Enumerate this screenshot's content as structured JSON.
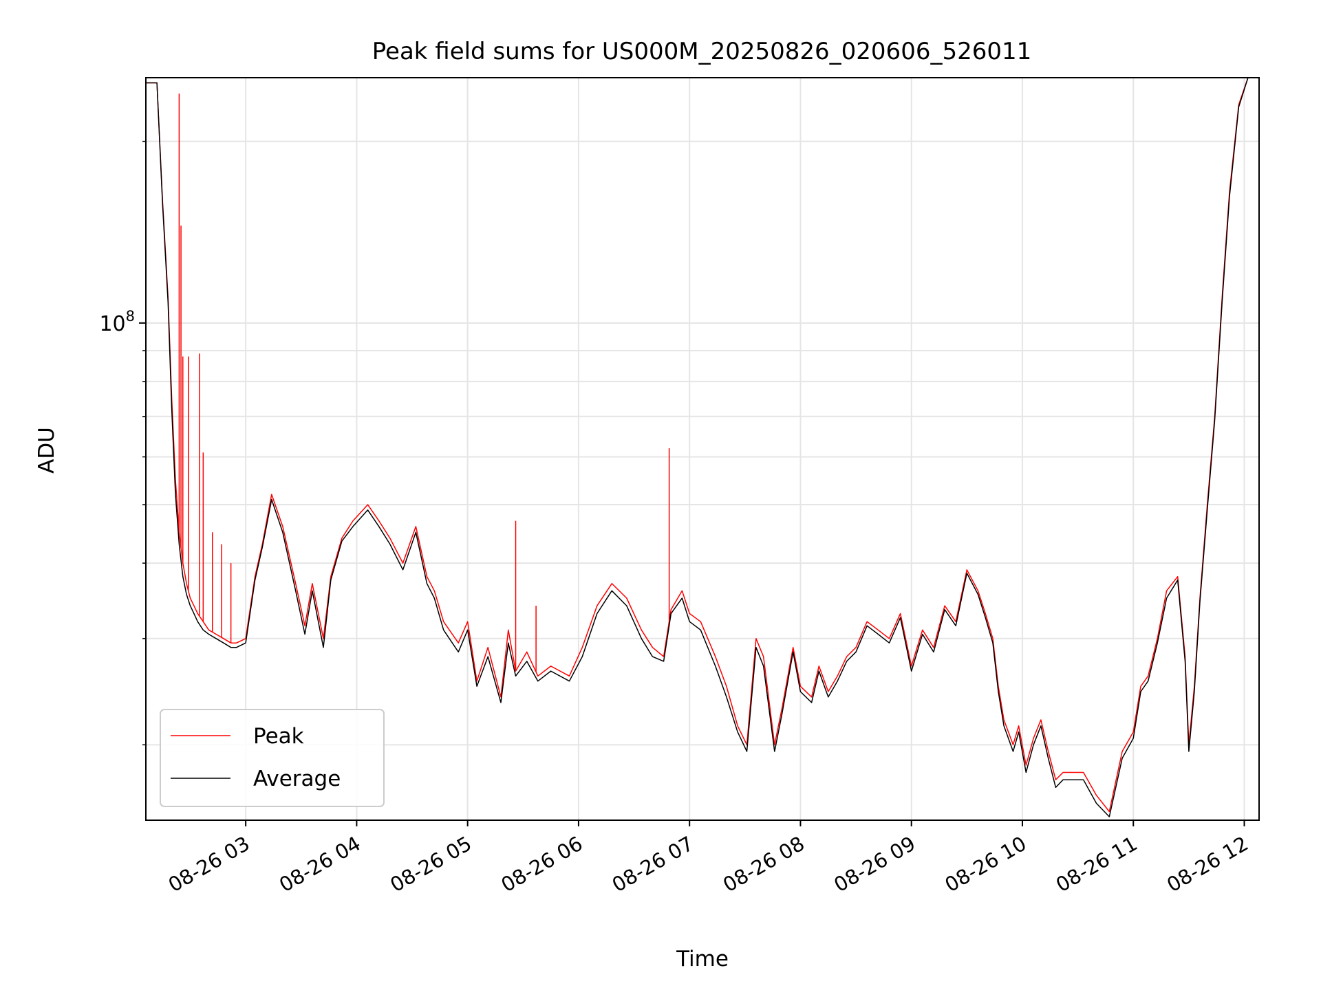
{
  "chart_data": {
    "type": "line",
    "title": "Peak field sums for US000M_20250826_020606_526011",
    "xlabel": "Time",
    "ylabel": "ADU",
    "yscale": "log",
    "grid": true,
    "legend_placement": "lower-left",
    "x_ticks": [
      "08-26 03",
      "08-26 04",
      "08-26 05",
      "08-26 06",
      "08-26 07",
      "08-26 08",
      "08-26 09",
      "08-26 10",
      "08-26 11",
      "08-26 12"
    ],
    "y_ticks": [
      {
        "value": 100000000,
        "base": "10",
        "exp": "8"
      }
    ],
    "x_range": [
      "08-26 02:06",
      "08-26 12:08"
    ],
    "y_range": [
      15000000,
      255000000
    ],
    "series": [
      {
        "name": "Peak",
        "color": "#ff0000",
        "x": [
          "08-26 02:06",
          "08-26 02:12",
          "08-26 02:15",
          "08-26 02:18",
          "08-26 02:20",
          "08-26 02:22",
          "08-26 02:24",
          "08-26 02:26",
          "08-26 02:28",
          "08-26 02:30",
          "08-26 02:32",
          "08-26 02:34",
          "08-26 02:37",
          "08-26 02:40",
          "08-26 02:44",
          "08-26 02:48",
          "08-26 02:52",
          "08-26 02:55",
          "08-26 03:00",
          "08-26 03:05",
          "08-26 03:09",
          "08-26 03:14",
          "08-26 03:20",
          "08-26 03:27",
          "08-26 03:32",
          "08-26 03:36",
          "08-26 03:42",
          "08-26 03:46",
          "08-26 03:52",
          "08-26 03:58",
          "08-26 04:06",
          "08-26 04:12",
          "08-26 04:18",
          "08-26 04:25",
          "08-26 04:32",
          "08-26 04:38",
          "08-26 04:42",
          "08-26 04:47",
          "08-26 04:55",
          "08-26 05:00",
          "08-26 05:05",
          "08-26 05:11",
          "08-26 05:18",
          "08-26 05:22",
          "08-26 05:26",
          "08-26 05:32",
          "08-26 05:38",
          "08-26 05:45",
          "08-26 05:55",
          "08-26 06:02",
          "08-26 06:10",
          "08-26 06:18",
          "08-26 06:26",
          "08-26 06:34",
          "08-26 06:40",
          "08-26 06:46",
          "08-26 06:50",
          "08-26 06:56",
          "08-26 07:00",
          "08-26 07:06",
          "08-26 07:14",
          "08-26 07:20",
          "08-26 07:26",
          "08-26 07:31",
          "08-26 07:36",
          "08-26 07:40",
          "08-26 07:46",
          "08-26 07:50",
          "08-26 07:56",
          "08-26 08:00",
          "08-26 08:06",
          "08-26 08:10",
          "08-26 08:15",
          "08-26 08:20",
          "08-26 08:25",
          "08-26 08:30",
          "08-26 08:36",
          "08-26 08:42",
          "08-26 08:48",
          "08-26 08:54",
          "08-26 09:00",
          "08-26 09:06",
          "08-26 09:12",
          "08-26 09:18",
          "08-26 09:24",
          "08-26 09:30",
          "08-26 09:36",
          "08-26 09:40",
          "08-26 09:44",
          "08-26 09:47",
          "08-26 09:50",
          "08-26 09:55",
          "08-26 09:58",
          "08-26 10:02",
          "08-26 10:06",
          "08-26 10:10",
          "08-26 10:14",
          "08-26 10:18",
          "08-26 10:22",
          "08-26 10:27",
          "08-26 10:33",
          "08-26 10:40",
          "08-26 10:47",
          "08-26 10:54",
          "08-26 11:00",
          "08-26 11:04",
          "08-26 11:08",
          "08-26 11:13",
          "08-26 11:18",
          "08-26 11:24",
          "08-26 11:28",
          "08-26 11:30",
          "08-26 11:33",
          "08-26 11:36",
          "08-26 11:40",
          "08-26 11:44",
          "08-26 11:48",
          "08-26 11:52",
          "08-26 11:57",
          "08-26 12:02",
          "08-26 12:04"
        ],
        "y": [
          250000000,
          250000000,
          160000000,
          110000000,
          75000000,
          55000000,
          45000000,
          40000000,
          37000000,
          35000000,
          34000000,
          33000000,
          32000000,
          31000000,
          30500000,
          30000000,
          29500000,
          29500000,
          30000000,
          38000000,
          43000000,
          52000000,
          46000000,
          37000000,
          31500000,
          37000000,
          30000000,
          38000000,
          44000000,
          47000000,
          50000000,
          47000000,
          44000000,
          40000000,
          46000000,
          38000000,
          36000000,
          32000000,
          29500000,
          32000000,
          25500000,
          29000000,
          24000000,
          31000000,
          26500000,
          28500000,
          26000000,
          27000000,
          26000000,
          29000000,
          34000000,
          37000000,
          35000000,
          31000000,
          29000000,
          28000000,
          33500000,
          36000000,
          33000000,
          32000000,
          28000000,
          25000000,
          21500000,
          20000000,
          30000000,
          28000000,
          20000000,
          23000000,
          29000000,
          25000000,
          24000000,
          27000000,
          24500000,
          26000000,
          28000000,
          29000000,
          32000000,
          31000000,
          30000000,
          33000000,
          27000000,
          31000000,
          29000000,
          34000000,
          32000000,
          39000000,
          36000000,
          33000000,
          30000000,
          25000000,
          22000000,
          20000000,
          21500000,
          18500000,
          20500000,
          22000000,
          19500000,
          17500000,
          18000000,
          18000000,
          18000000,
          16500000,
          15500000,
          19500000,
          21000000,
          25000000,
          26000000,
          30000000,
          36000000,
          38000000,
          28000000,
          20000000,
          25000000,
          35000000,
          50000000,
          70000000,
          110000000,
          165000000,
          230000000,
          255000000,
          255000000
        ]
      },
      {
        "name": "Average",
        "color": "#000000",
        "x": [
          "08-26 02:06",
          "08-26 02:12",
          "08-26 02:15",
          "08-26 02:18",
          "08-26 02:20",
          "08-26 02:22",
          "08-26 02:24",
          "08-26 02:26",
          "08-26 02:28",
          "08-26 02:30",
          "08-26 02:32",
          "08-26 02:34",
          "08-26 02:37",
          "08-26 02:40",
          "08-26 02:44",
          "08-26 02:48",
          "08-26 02:52",
          "08-26 02:55",
          "08-26 03:00",
          "08-26 03:05",
          "08-26 03:09",
          "08-26 03:14",
          "08-26 03:20",
          "08-26 03:27",
          "08-26 03:32",
          "08-26 03:36",
          "08-26 03:42",
          "08-26 03:46",
          "08-26 03:52",
          "08-26 03:58",
          "08-26 04:06",
          "08-26 04:12",
          "08-26 04:18",
          "08-26 04:25",
          "08-26 04:32",
          "08-26 04:38",
          "08-26 04:42",
          "08-26 04:47",
          "08-26 04:55",
          "08-26 05:00",
          "08-26 05:05",
          "08-26 05:11",
          "08-26 05:18",
          "08-26 05:22",
          "08-26 05:26",
          "08-26 05:32",
          "08-26 05:38",
          "08-26 05:45",
          "08-26 05:55",
          "08-26 06:02",
          "08-26 06:10",
          "08-26 06:18",
          "08-26 06:26",
          "08-26 06:34",
          "08-26 06:40",
          "08-26 06:46",
          "08-26 06:50",
          "08-26 06:56",
          "08-26 07:00",
          "08-26 07:06",
          "08-26 07:14",
          "08-26 07:20",
          "08-26 07:26",
          "08-26 07:31",
          "08-26 07:36",
          "08-26 07:40",
          "08-26 07:46",
          "08-26 07:50",
          "08-26 07:56",
          "08-26 08:00",
          "08-26 08:06",
          "08-26 08:10",
          "08-26 08:15",
          "08-26 08:20",
          "08-26 08:25",
          "08-26 08:30",
          "08-26 08:36",
          "08-26 08:42",
          "08-26 08:48",
          "08-26 08:54",
          "08-26 09:00",
          "08-26 09:06",
          "08-26 09:12",
          "08-26 09:18",
          "08-26 09:24",
          "08-26 09:30",
          "08-26 09:36",
          "08-26 09:40",
          "08-26 09:44",
          "08-26 09:47",
          "08-26 09:50",
          "08-26 09:55",
          "08-26 09:58",
          "08-26 10:02",
          "08-26 10:06",
          "08-26 10:10",
          "08-26 10:14",
          "08-26 10:18",
          "08-26 10:22",
          "08-26 10:27",
          "08-26 10:33",
          "08-26 10:40",
          "08-26 10:47",
          "08-26 10:54",
          "08-26 11:00",
          "08-26 11:04",
          "08-26 11:08",
          "08-26 11:13",
          "08-26 11:18",
          "08-26 11:24",
          "08-26 11:28",
          "08-26 11:30",
          "08-26 11:33",
          "08-26 11:36",
          "08-26 11:40",
          "08-26 11:44",
          "08-26 11:48",
          "08-26 11:52",
          "08-26 11:57",
          "08-26 12:02",
          "08-26 12:04"
        ],
        "y": [
          250000000,
          250000000,
          158000000,
          108000000,
          72000000,
          52000000,
          43000000,
          38000000,
          35500000,
          34000000,
          33000000,
          32000000,
          31000000,
          30500000,
          30000000,
          29500000,
          29000000,
          29000000,
          29500000,
          37500000,
          42500000,
          51000000,
          45000000,
          36000000,
          30500000,
          36000000,
          29000000,
          37500000,
          43500000,
          46000000,
          49000000,
          46000000,
          43000000,
          39000000,
          45000000,
          37000000,
          35000000,
          31000000,
          28500000,
          31000000,
          25000000,
          28000000,
          23500000,
          29500000,
          26000000,
          27500000,
          25500000,
          26500000,
          25500000,
          28000000,
          33000000,
          36000000,
          34000000,
          30000000,
          28000000,
          27500000,
          33000000,
          35000000,
          32000000,
          31000000,
          27000000,
          24000000,
          21000000,
          19500000,
          29000000,
          27000000,
          19500000,
          22500000,
          28500000,
          24500000,
          23500000,
          26500000,
          24000000,
          25500000,
          27500000,
          28500000,
          31500000,
          30500000,
          29500000,
          32500000,
          26500000,
          30500000,
          28500000,
          33500000,
          31500000,
          38500000,
          35500000,
          32500000,
          29500000,
          24500000,
          21500000,
          19500000,
          21000000,
          18000000,
          20000000,
          21500000,
          19000000,
          17000000,
          17500000,
          17500000,
          17500000,
          16000000,
          15200000,
          19000000,
          20500000,
          24500000,
          25500000,
          29500000,
          35000000,
          37500000,
          27500000,
          19500000,
          24500000,
          34500000,
          49000000,
          69000000,
          108000000,
          162000000,
          228000000,
          255000000,
          255000000
        ]
      }
    ],
    "spikes": {
      "series": "Peak",
      "x": [
        "08-26 02:24",
        "08-26 02:25",
        "08-26 02:26",
        "08-26 02:29",
        "08-26 02:35",
        "08-26 02:37",
        "08-26 02:42",
        "08-26 02:47",
        "08-26 02:52",
        "08-26 05:26",
        "08-26 05:37",
        "08-26 06:49"
      ],
      "y": [
        240000000,
        145000000,
        88000000,
        88000000,
        89000000,
        61000000,
        45000000,
        43000000,
        40000000,
        47000000,
        34000000,
        62000000
      ]
    }
  }
}
